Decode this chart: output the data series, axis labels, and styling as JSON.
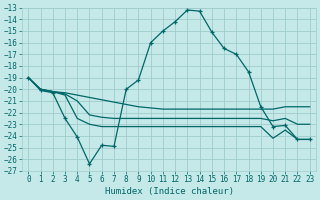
{
  "title": "",
  "xlabel": "Humidex (Indice chaleur)",
  "ylabel": "",
  "bg_color": "#c5e8e8",
  "grid_color": "#a0cccc",
  "line_color": "#006868",
  "marker": "+",
  "ylim": [
    -27,
    -13
  ],
  "xlim": [
    -0.5,
    23.5
  ],
  "yticks": [
    -27,
    -26,
    -25,
    -24,
    -23,
    -22,
    -21,
    -20,
    -19,
    -18,
    -17,
    -16,
    -15,
    -14,
    -13
  ],
  "xticks": [
    0,
    1,
    2,
    3,
    4,
    5,
    6,
    7,
    8,
    9,
    10,
    11,
    12,
    13,
    14,
    15,
    16,
    17,
    18,
    19,
    20,
    21,
    22,
    23
  ],
  "line1_x": [
    0,
    1,
    2,
    3,
    4,
    5,
    6,
    7,
    8,
    9,
    10,
    11,
    12,
    13,
    14,
    15,
    16,
    17,
    18,
    19,
    20,
    21,
    22,
    23
  ],
  "line1_y": [
    -19.0,
    -20.1,
    -20.3,
    -22.5,
    -24.1,
    -26.4,
    -24.8,
    -24.9,
    -20.0,
    -19.2,
    -16.0,
    -15.0,
    -14.2,
    -13.2,
    -13.3,
    -15.1,
    -16.5,
    -17.0,
    -18.5,
    -21.5,
    -23.2,
    -23.1,
    -24.3,
    -24.3
  ],
  "line2_x": [
    0,
    1,
    2,
    3,
    4,
    5,
    6,
    7,
    8,
    9,
    10,
    11,
    12,
    13,
    14,
    15,
    16,
    17,
    18,
    19,
    20,
    21,
    22,
    23
  ],
  "line2_y": [
    -19.0,
    -20.0,
    -20.2,
    -20.3,
    -20.5,
    -20.7,
    -20.9,
    -21.1,
    -21.3,
    -21.5,
    -21.6,
    -21.7,
    -21.7,
    -21.7,
    -21.7,
    -21.7,
    -21.7,
    -21.7,
    -21.7,
    -21.7,
    -21.7,
    -21.5,
    -21.5,
    -21.5
  ],
  "line3_x": [
    0,
    1,
    2,
    3,
    4,
    5,
    6,
    7,
    8,
    9,
    10,
    11,
    12,
    13,
    14,
    15,
    16,
    17,
    18,
    19,
    20,
    21,
    22,
    23
  ],
  "line3_y": [
    -19.0,
    -20.0,
    -20.2,
    -20.4,
    -21.0,
    -22.2,
    -22.4,
    -22.5,
    -22.5,
    -22.5,
    -22.5,
    -22.5,
    -22.5,
    -22.5,
    -22.5,
    -22.5,
    -22.5,
    -22.5,
    -22.5,
    -22.5,
    -22.7,
    -22.5,
    -23.0,
    -23.0
  ],
  "line4_x": [
    0,
    1,
    2,
    3,
    4,
    5,
    6,
    7,
    8,
    9,
    10,
    11,
    12,
    13,
    14,
    15,
    16,
    17,
    18,
    19,
    20,
    21,
    22,
    23
  ],
  "line4_y": [
    -19.0,
    -20.0,
    -20.2,
    -20.5,
    -22.5,
    -23.0,
    -23.2,
    -23.2,
    -23.2,
    -23.2,
    -23.2,
    -23.2,
    -23.2,
    -23.2,
    -23.2,
    -23.2,
    -23.2,
    -23.2,
    -23.2,
    -23.2,
    -24.2,
    -23.5,
    -24.3,
    -24.3
  ]
}
